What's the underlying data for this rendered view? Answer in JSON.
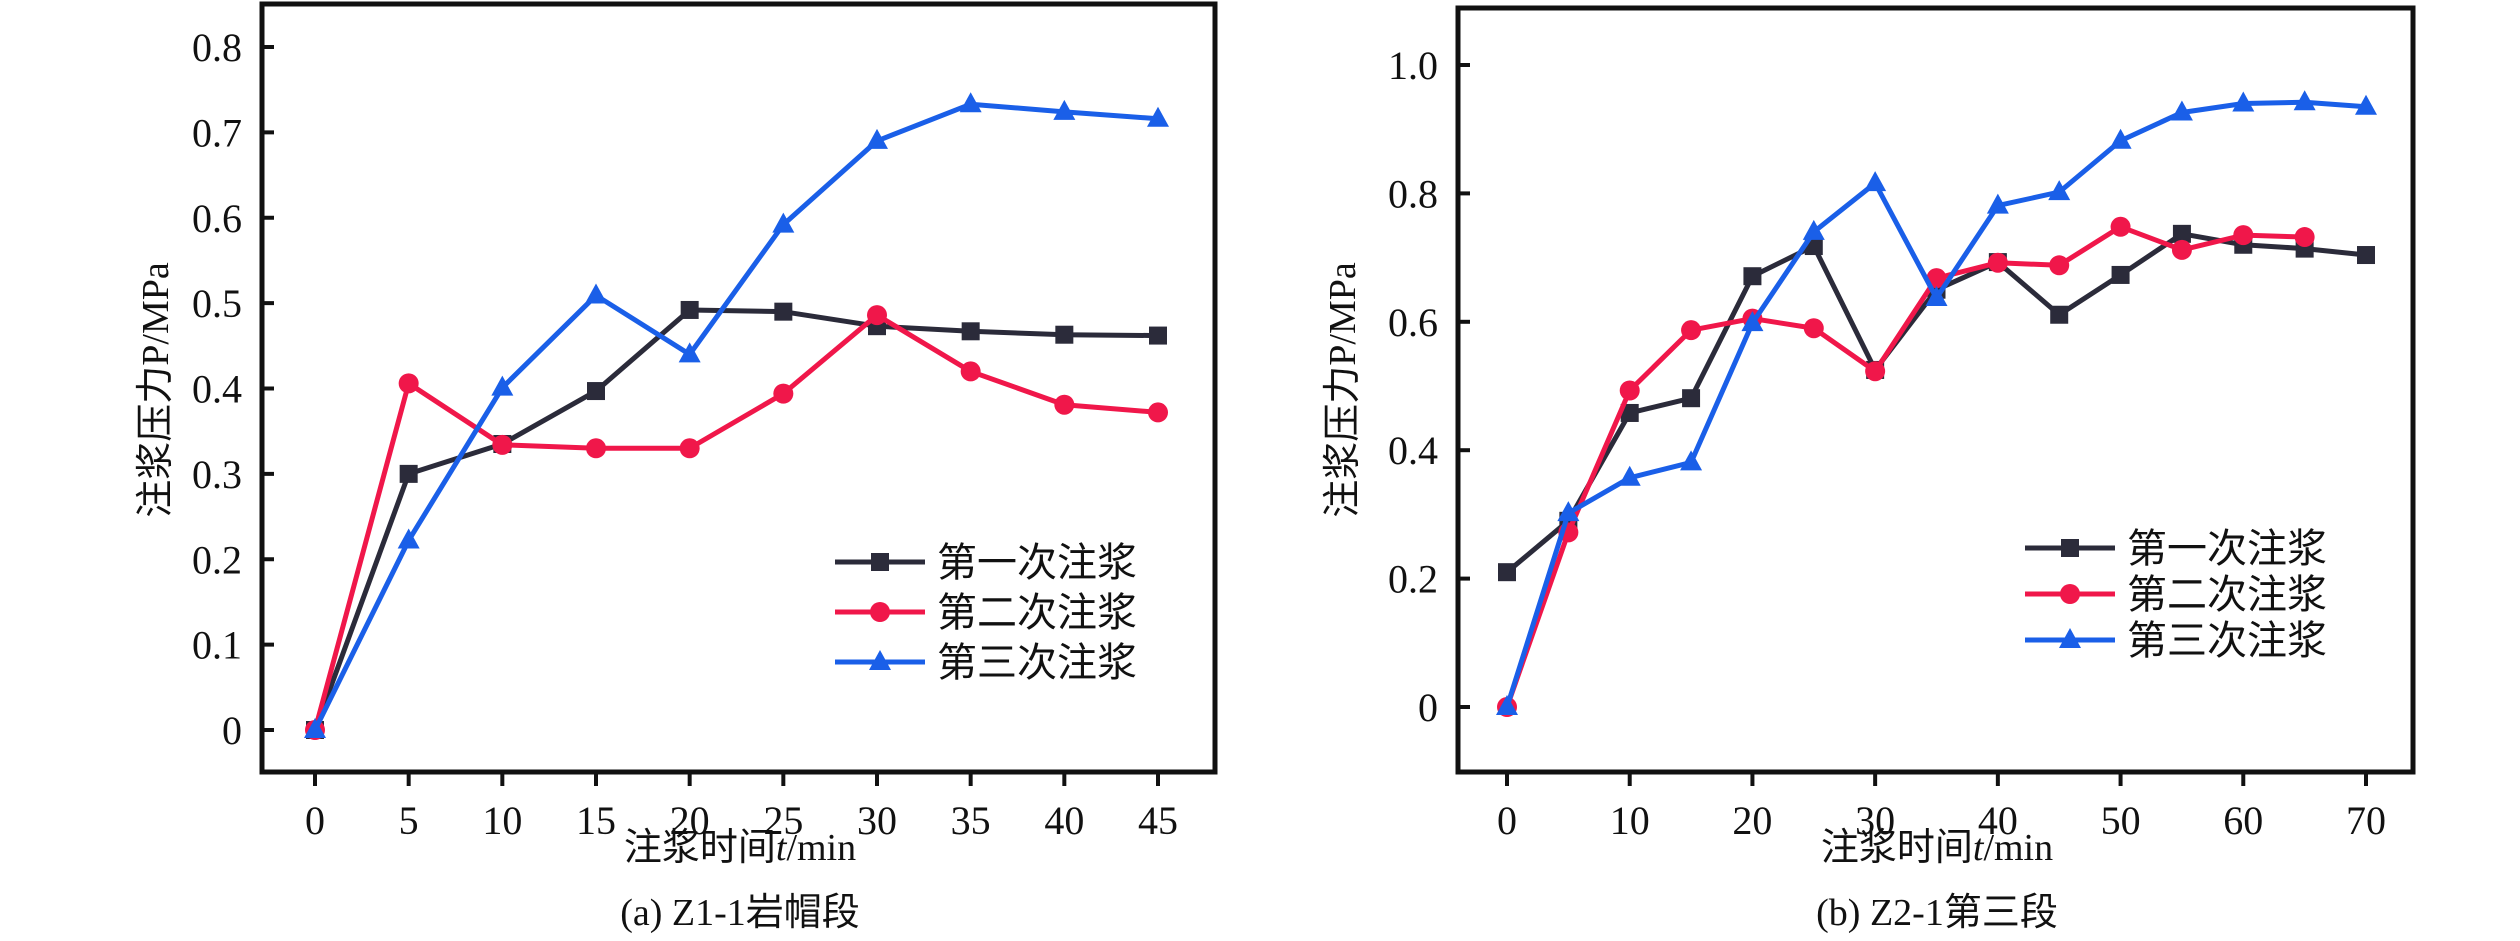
{
  "chart_data": [
    {
      "type": "line",
      "title": "",
      "caption": "(a) Z1-1岩帽段",
      "xlabel": "注浆时间t/min",
      "xlabel_parts": [
        "注浆时间",
        "t",
        "/min"
      ],
      "ylabel": "注浆压力P/MPa",
      "x": [
        0,
        5,
        10,
        15,
        20,
        25,
        30,
        35,
        40,
        45
      ],
      "xticks": [
        "0",
        "5",
        "10",
        "15",
        "20",
        "25",
        "30",
        "35",
        "40",
        "45"
      ],
      "yticks": [
        "0",
        "0.1",
        "0.2",
        "0.3",
        "0.4",
        "0.5",
        "0.6",
        "0.7",
        "0.8"
      ],
      "ytick_values": [
        0,
        0.1,
        0.2,
        0.3,
        0.4,
        0.5,
        0.6,
        0.7,
        0.8
      ],
      "xlim": [
        -3,
        48
      ],
      "ylim": [
        -0.05,
        0.85
      ],
      "grid": false,
      "legend_position": "bottom-right",
      "series": [
        {
          "name": "第一次注浆",
          "marker": "square",
          "color": "#2b2b3a",
          "values": [
            0,
            0.3,
            0.335,
            0.397,
            0.492,
            0.49,
            0.473,
            0.467,
            0.463,
            0.462
          ]
        },
        {
          "name": "第二次注浆",
          "marker": "circle",
          "color": "#f0174a",
          "values": [
            0,
            0.406,
            0.334,
            0.33,
            0.33,
            0.394,
            0.486,
            0.42,
            0.381,
            0.372
          ]
        },
        {
          "name": "第三次注浆",
          "marker": "triangle",
          "color": "#1a5fe8",
          "values": [
            0,
            0.222,
            0.401,
            0.509,
            0.44,
            0.592,
            0.69,
            0.733,
            0.724,
            0.716
          ]
        }
      ]
    },
    {
      "type": "line",
      "title": "",
      "caption": "(b) Z2-1第三段",
      "xlabel": "注浆时间t/min",
      "xlabel_parts": [
        "注浆时间",
        "t",
        "/min"
      ],
      "ylabel": "注浆压力P/MPa",
      "x": [
        0,
        5,
        10,
        15,
        20,
        25,
        30,
        35,
        40,
        45,
        50,
        55,
        60,
        65,
        70
      ],
      "xticks": [
        "0",
        "10",
        "20",
        "30",
        "40",
        "50",
        "60",
        "70"
      ],
      "xtick_values": [
        0,
        10,
        20,
        30,
        40,
        50,
        60,
        70
      ],
      "yticks": [
        "0",
        "0.2",
        "0.4",
        "0.6",
        "0.8",
        "1.0"
      ],
      "ytick_values": [
        0,
        0.2,
        0.4,
        0.6,
        0.8,
        1.0
      ],
      "xlim": [
        -4,
        74
      ],
      "ylim": [
        -0.1,
        1.1
      ],
      "grid": false,
      "legend_position": "bottom-right",
      "series": [
        {
          "name": "第一次注浆",
          "marker": "square",
          "color": "#2b2b3a",
          "x": [
            0,
            5,
            10,
            15,
            20,
            25,
            30,
            35,
            40,
            45,
            50,
            55,
            60,
            65,
            70
          ],
          "values": [
            0.21,
            0.29,
            0.458,
            0.481,
            0.671,
            0.718,
            0.525,
            0.65,
            0.693,
            0.611,
            0.673,
            0.737,
            0.72,
            0.714,
            0.704
          ]
        },
        {
          "name": "第二次注浆",
          "marker": "circle",
          "color": "#f0174a",
          "x": [
            0,
            5,
            10,
            15,
            20,
            25,
            30,
            35,
            40,
            45,
            50,
            55,
            60,
            65
          ],
          "values": [
            0,
            0.272,
            0.493,
            0.587,
            0.605,
            0.59,
            0.523,
            0.668,
            0.692,
            0.688,
            0.748,
            0.712,
            0.735,
            0.732
          ]
        },
        {
          "name": "第三次注浆",
          "marker": "triangle",
          "color": "#1a5fe8",
          "x": [
            0,
            5,
            10,
            15,
            20,
            25,
            30,
            35,
            40,
            45,
            50,
            55,
            60,
            65,
            70
          ],
          "values": [
            0,
            0.302,
            0.357,
            0.381,
            0.598,
            0.74,
            0.816,
            0.637,
            0.781,
            0.802,
            0.882,
            0.926,
            0.94,
            0.942,
            0.935
          ]
        }
      ]
    }
  ]
}
